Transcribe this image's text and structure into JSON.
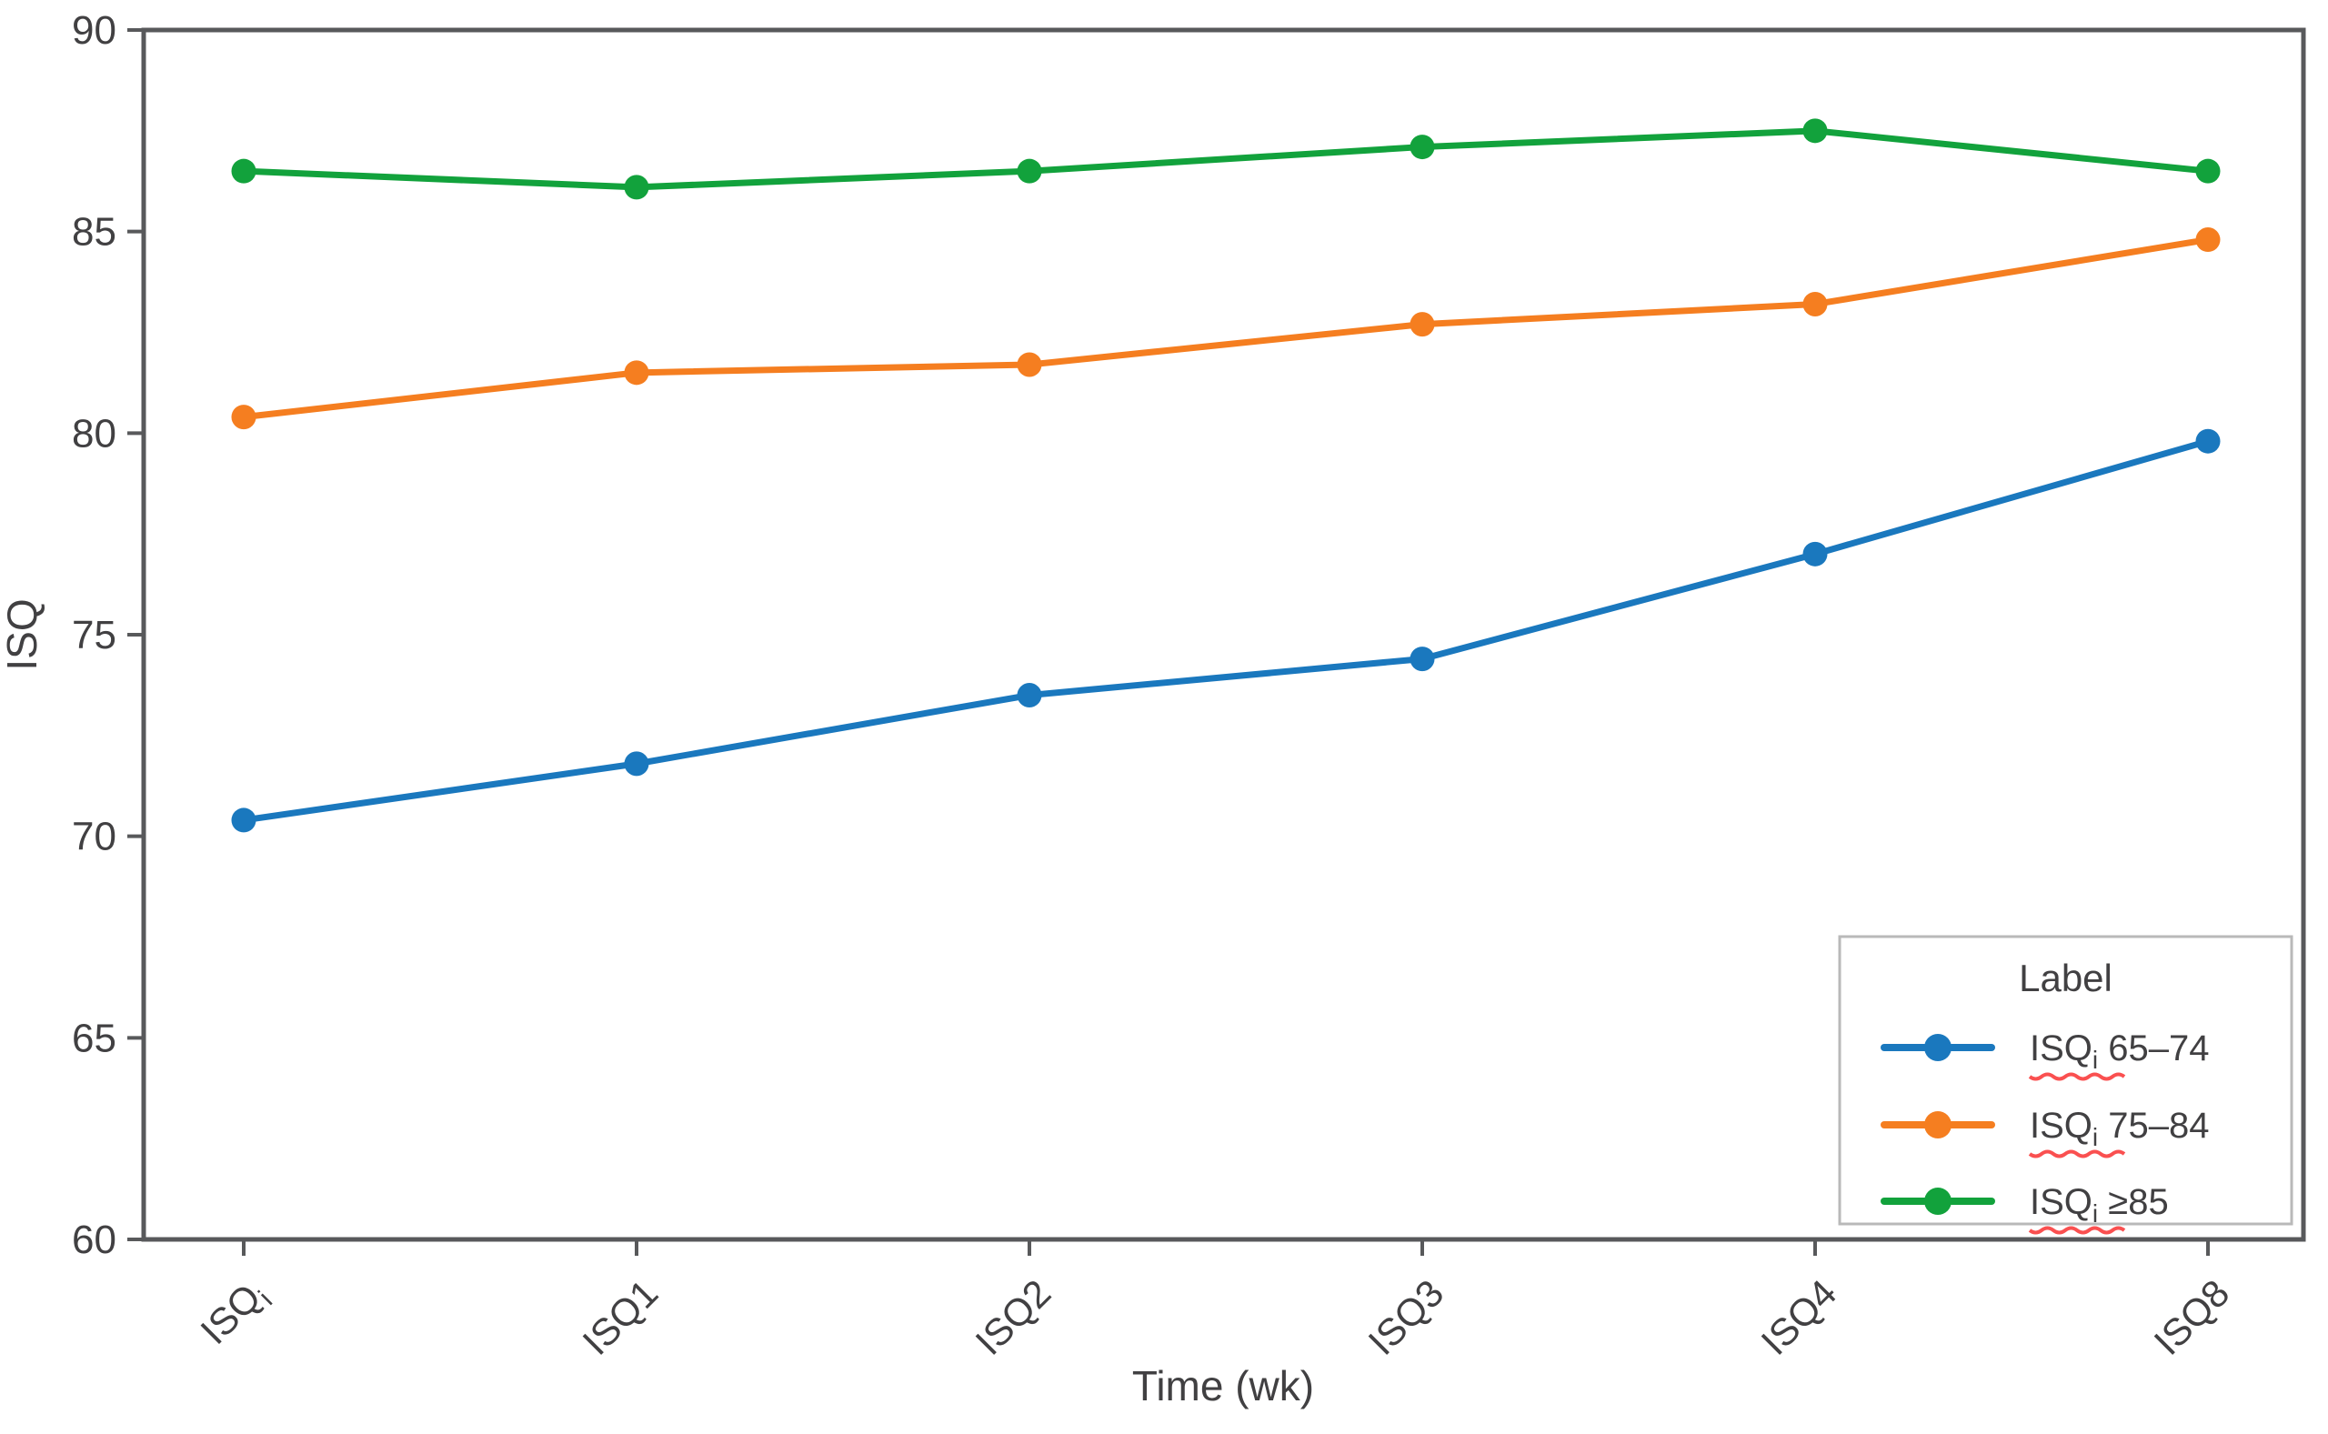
{
  "figure": {
    "background": "#ffffff",
    "frame_color": "#58595b",
    "text_color": "#414042",
    "legend_border_color": "#b9b9b9",
    "squiggle_color": "#fa5050"
  },
  "chart_data": {
    "type": "line",
    "title": "",
    "xlabel": "Time (wk)",
    "ylabel": "ISQ",
    "ylim": [
      60,
      90
    ],
    "yticks": [
      60,
      65,
      70,
      75,
      80,
      85,
      90
    ],
    "grid": "off",
    "categories": [
      "ISQi",
      "ISQ1",
      "ISQ2",
      "ISQ3",
      "ISQ4",
      "ISQ8"
    ],
    "categories_rich": [
      {
        "base": "ISQ",
        "sub": "i"
      },
      {
        "base": "ISQ1",
        "sub": ""
      },
      {
        "base": "ISQ2",
        "sub": ""
      },
      {
        "base": "ISQ3",
        "sub": ""
      },
      {
        "base": "ISQ4",
        "sub": ""
      },
      {
        "base": "ISQ8",
        "sub": ""
      }
    ],
    "series": [
      {
        "name": "ISQi 65–74",
        "label_base": "ISQ",
        "label_sub": "i",
        "label_range": " 65–74",
        "color": "#1a78be",
        "values": [
          70.4,
          71.8,
          73.5,
          74.4,
          77.0,
          79.8
        ]
      },
      {
        "name": "ISQi 75–84",
        "label_base": "ISQ",
        "label_sub": "i",
        "label_range": " 75–84",
        "color": "#f57e20",
        "values": [
          80.4,
          81.5,
          81.7,
          82.7,
          83.2,
          84.8
        ]
      },
      {
        "name": "ISQi ≥85",
        "label_base": "ISQ",
        "label_sub": "i",
        "label_range": " ≥85",
        "color": "#12a23c",
        "values": [
          86.5,
          86.1,
          86.5,
          87.1,
          87.5,
          86.5
        ]
      }
    ],
    "legend": {
      "title": "Label",
      "position": "lower right"
    }
  }
}
